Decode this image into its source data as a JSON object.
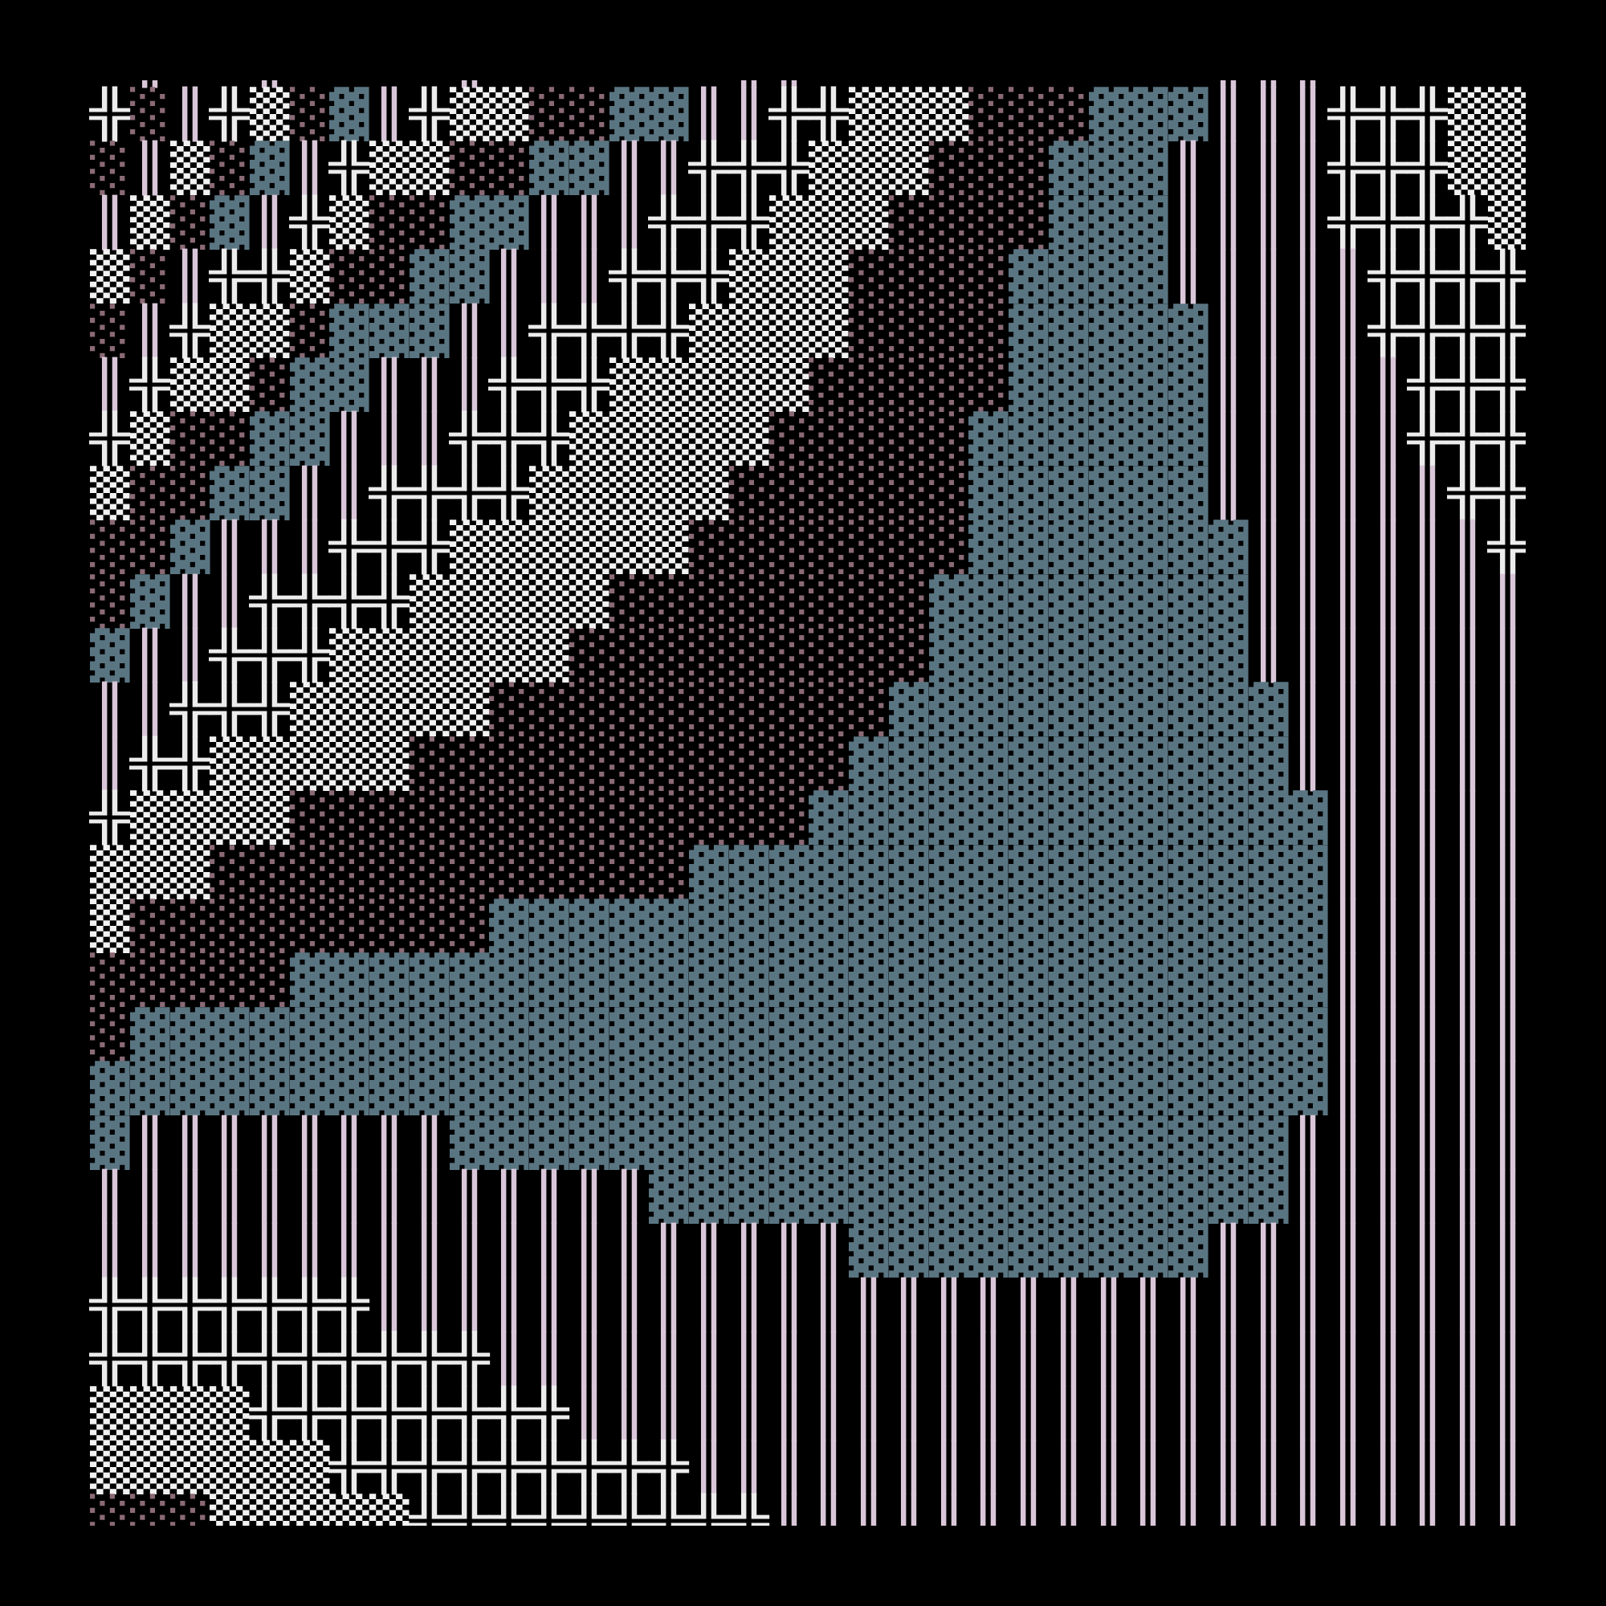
{
  "glyphs": {
    "X": {
      "char": "╬",
      "name": "double-cross",
      "color": "#ececec"
    },
    "W": {
      "char": "▒",
      "name": "medium-shade",
      "color": "#f2f2f2"
    },
    "D": {
      "char": "░",
      "name": "light-shade",
      "color": "#6a4e58"
    },
    "B": {
      "char": "▓",
      "name": "dark-shade",
      "color": "#5a7582"
    },
    "P": {
      "char": "║",
      "name": "double-vertical",
      "color": "#d9c7d9"
    }
  },
  "background": "#000000",
  "rows": [
    ".P..P....P......PP..........PPP......",
    "XDPXWDBPXWWDDBBPPXXWWWDDDBBBPPPXXXWWW",
    "DPWDBPXWWDDBBPPXXXWWWDDDBBBPPPPXXXWWW",
    "PWDBPXWDDBBPPPXXXWWWDDDDBBBPPPPXXXXWW",
    "WDPXXWDDBBPPPXXXWWWDDDDBBBBPPPPPXXXXW",
    "DPXWWDBBBPPXXXXWWWWDDDDBBBBBPPPPXXXXX",
    "PXWWDBBPPPXXXWWWWWDDDDDBBBBBPPPPPXXXX",
    "XWDDBBPPPXXXWWWWWDDDDDBBBBBBPPPPPXXXX",
    "WDDBBPPXXXXWWWWWDDDDDDBBBBBBPPPPPPXXX",
    "DDBPPPXXXWWWWWWDDDDDDDBBBBBBBPPPPPPXX",
    "DBPPXXXXWWWWWDDDDDDDDBBBBBBBBPPPPPPPX",
    "BPPXXXWWWWWWDDDDDDDDDBBBBBBBBPPPPPPPX",
    "PPXXXWWWWWDDDDDDDDDDBBBBBBBBBBPPPPPPP",
    "PXXWWWWWDDDDDDDDDDDBBBBBBBBBBBPPPPPPP",
    "XWWWWDDDDDDDDDDDDDBBBBBBBBBBBBBPPPPPP",
    "WWWDDDDDDDDDDDDBBBBBBBBBBBBBBBBPPPPPP",
    "WDDDDDDDDDBBBBBBBBBBBBBBBBBBBBBPPPPPP",
    "DDDDDBBBBBBBBBBBBBBBBBBBBBBBBBBPPPPPP",
    "DBBBBBBBBBBBBBBBBBBBBBBBBBBBBBBPPPPPP",
    "BBBBBBBBBBBBBBBBBBBBBBBBBBBBBBBPPPPPP",
    "BPPPPPPPPBBBBBBBBBBBBBBBBBBBBBPPPPPPP",
    "PPPPPPPPPPPPPPBBBBBBBBBBBBBBBBPPPPPPP",
    "PPPPPPPPPPPPPPPPPPPBBBBBBBBBPPPPPPPPP",
    "XXXXXXXPPPPPPPPPPPPPPPPPPPPPPPPPPPPPP",
    "XXXXXXXXXXPPPPPPPPPPPPPPPPPPPPPPPPPPP",
    "WWWWXXXXXXXXPPPPPPPPPPPPPPPPPPPPPPPPP",
    "WWWWWWXXXXXXXXXPPPPPPPPPPPPPPPPPPPPPP",
    "DDDWWWWWXXXXXXXXXPPPPPPPPPPPPPPPPPPPP"
  ]
}
